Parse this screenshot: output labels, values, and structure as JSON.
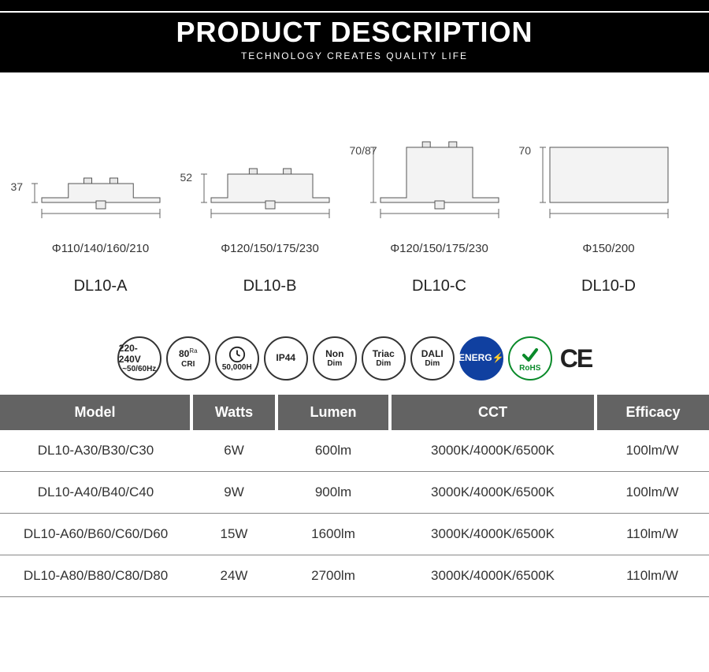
{
  "header": {
    "title": "PRODUCT DESCRIPTION",
    "subtitle": "TECHNOLOGY CREATES QUALITY LIFE"
  },
  "diagrams": [
    {
      "name": "DL10-A",
      "height_label": "37",
      "diameter_label": "Φ110/140/160/210",
      "profile_h": 24,
      "top_w": 0.55
    },
    {
      "name": "DL10-B",
      "height_label": "52",
      "diameter_label": "Φ120/150/175/230",
      "profile_h": 36,
      "top_w": 0.72
    },
    {
      "name": "DL10-C",
      "height_label": "70/87",
      "diameter_label": "Φ120/150/175/230",
      "profile_h": 70,
      "top_w": 0.56
    },
    {
      "name": "DL10-D",
      "height_label": "70",
      "diameter_label": "Φ150/200",
      "profile_h": 70,
      "top_w": 1.0
    }
  ],
  "badges": [
    {
      "name": "voltage",
      "l1": "220-240V",
      "l2": "~50/60Hz"
    },
    {
      "name": "cri",
      "l1": "80",
      "sup": "Ra",
      "l2": "CRI"
    },
    {
      "name": "lifetime",
      "icon": "clock",
      "l2": "50,000H"
    },
    {
      "name": "ip",
      "l1": "IP44"
    },
    {
      "name": "nondim",
      "l1": "Non",
      "l2": "Dim"
    },
    {
      "name": "triac",
      "l1": "Triac",
      "l2": "Dim"
    },
    {
      "name": "dali",
      "l1": "DALI",
      "l2": "Dim"
    },
    {
      "name": "energ",
      "l1": "ENERG⚡",
      "cls": "badge-energ"
    },
    {
      "name": "rohs",
      "icon": "check",
      "l2": "RoHS",
      "cls": "badge-rohs"
    }
  ],
  "ce_label": "CE",
  "table": {
    "columns": [
      "Model",
      "Watts",
      "Lumen",
      "CCT",
      "Efficacy"
    ],
    "rows": [
      [
        "DL10-A30/B30/C30",
        "6W",
        "600lm",
        "3000K/4000K/6500K",
        "100lm/W"
      ],
      [
        "DL10-A40/B40/C40",
        "9W",
        "900lm",
        "3000K/4000K/6500K",
        "100lm/W"
      ],
      [
        "DL10-A60/B60/C60/D60",
        "15W",
        "1600lm",
        "3000K/4000K/6500K",
        "110lm/W"
      ],
      [
        "DL10-A80/B80/C80/D80",
        "24W",
        "2700lm",
        "3000K/4000K/6500K",
        "110lm/W"
      ]
    ]
  },
  "colors": {
    "header_bg": "#000000",
    "header_fg": "#ffffff",
    "table_header_bg": "#636363",
    "table_header_fg": "#ffffff",
    "grid": "#888888",
    "energ_bg": "#1040a0",
    "rohs": "#0a8a2a"
  }
}
